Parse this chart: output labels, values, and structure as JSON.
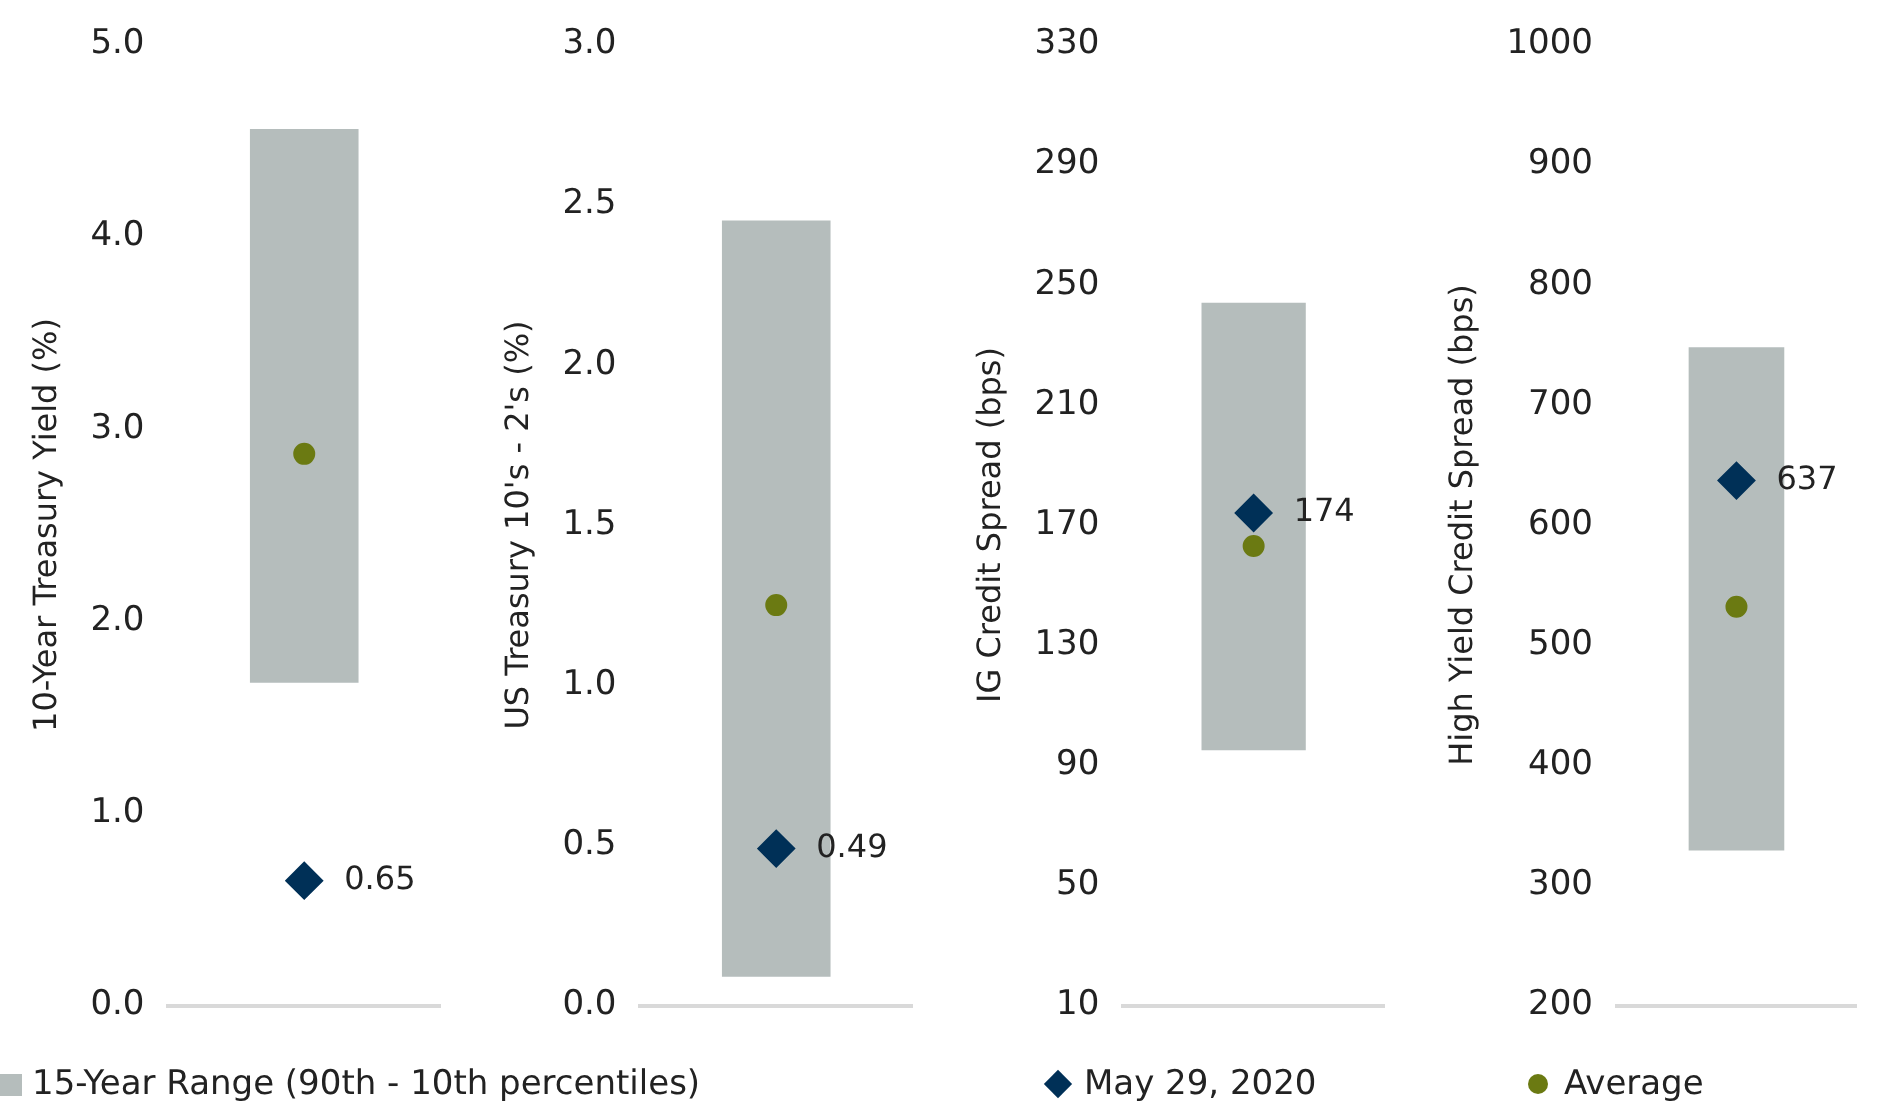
{
  "chart_data": [
    {
      "type": "bar",
      "categories": [
        null
      ],
      "ylabel": "10-Year Treasury Yield (%)",
      "ylim": [
        0,
        5
      ],
      "yticks": [
        {
          "value": 0,
          "label": "0.0"
        },
        {
          "value": 1,
          "label": "1.0"
        },
        {
          "value": 2,
          "label": "2.0"
        },
        {
          "value": 3,
          "label": "3.0"
        },
        {
          "value": 4,
          "label": "4.0"
        },
        {
          "value": 5,
          "label": "5.0"
        }
      ],
      "grid": false,
      "tick_labels": "y",
      "legend": "bottom",
      "series": [
        {
          "name": "15-Year Range (90th - 10th percentiles)",
          "color": "#b5bdbc",
          "base": [
            1.68
          ],
          "values": [
            2.88
          ]
        },
        {
          "name": "May 29, 2020",
          "type": "scatter",
          "marker": "diamond",
          "color": "#003057",
          "values": [
            0.65
          ],
          "value_labels": [
            "0.65"
          ]
        },
        {
          "name": "Average",
          "type": "scatter",
          "marker": "circle",
          "color": "#6b7a12",
          "values": [
            2.87
          ]
        }
      ]
    },
    {
      "type": "bar",
      "categories": [
        null
      ],
      "ylabel": "US Treasury 10's - 2's (%)",
      "ylim": [
        0,
        3
      ],
      "yticks": [
        {
          "value": 0,
          "label": "0.0"
        },
        {
          "value": 0.5,
          "label": "0.5"
        },
        {
          "value": 1,
          "label": "1.0"
        },
        {
          "value": 1.5,
          "label": "1.5"
        },
        {
          "value": 2,
          "label": "2.0"
        },
        {
          "value": 2.5,
          "label": "2.5"
        },
        {
          "value": 3,
          "label": "3.0"
        }
      ],
      "grid": false,
      "tick_labels": "y",
      "series": [
        {
          "color": "#b5bdbc",
          "base": [
            0.09
          ],
          "values": [
            2.36
          ]
        },
        {
          "type": "scatter",
          "marker": "diamond",
          "color": "#003057",
          "values": [
            0.49
          ],
          "value_labels": [
            "0.49"
          ]
        },
        {
          "type": "scatter",
          "marker": "circle",
          "color": "#6b7a12",
          "values": [
            1.25
          ]
        }
      ]
    },
    {
      "type": "bar",
      "categories": [
        null
      ],
      "ylabel": "IG Credit Spread (bps)",
      "ylim": [
        10,
        330
      ],
      "yticks": [
        10,
        50,
        90,
        130,
        170,
        210,
        250,
        290,
        330
      ],
      "grid": false,
      "tick_labels": "y",
      "series": [
        {
          "color": "#b5bdbc",
          "base": [
            95
          ],
          "values": [
            149
          ]
        },
        {
          "type": "scatter",
          "marker": "diamond",
          "color": "#003057",
          "values": [
            174
          ],
          "value_labels": [
            "174"
          ]
        },
        {
          "type": "scatter",
          "marker": "circle",
          "color": "#6b7a12",
          "values": [
            163
          ]
        }
      ]
    },
    {
      "type": "bar",
      "categories": [
        null
      ],
      "ylabel": "High Yield Credit Spread (bps)",
      "ylim": [
        200,
        1000
      ],
      "yticks": [
        200,
        300,
        400,
        500,
        600,
        700,
        800,
        900,
        1000
      ],
      "grid": false,
      "tick_labels": "y",
      "series": [
        {
          "color": "#b5bdbc",
          "base": [
            329
          ],
          "values": [
            419
          ]
        },
        {
          "type": "scatter",
          "marker": "diamond",
          "color": "#003057",
          "values": [
            637
          ],
          "value_labels": [
            "637"
          ]
        },
        {
          "type": "scatter",
          "marker": "circle",
          "color": "#6b7a12",
          "values": [
            532
          ]
        }
      ]
    }
  ]
}
